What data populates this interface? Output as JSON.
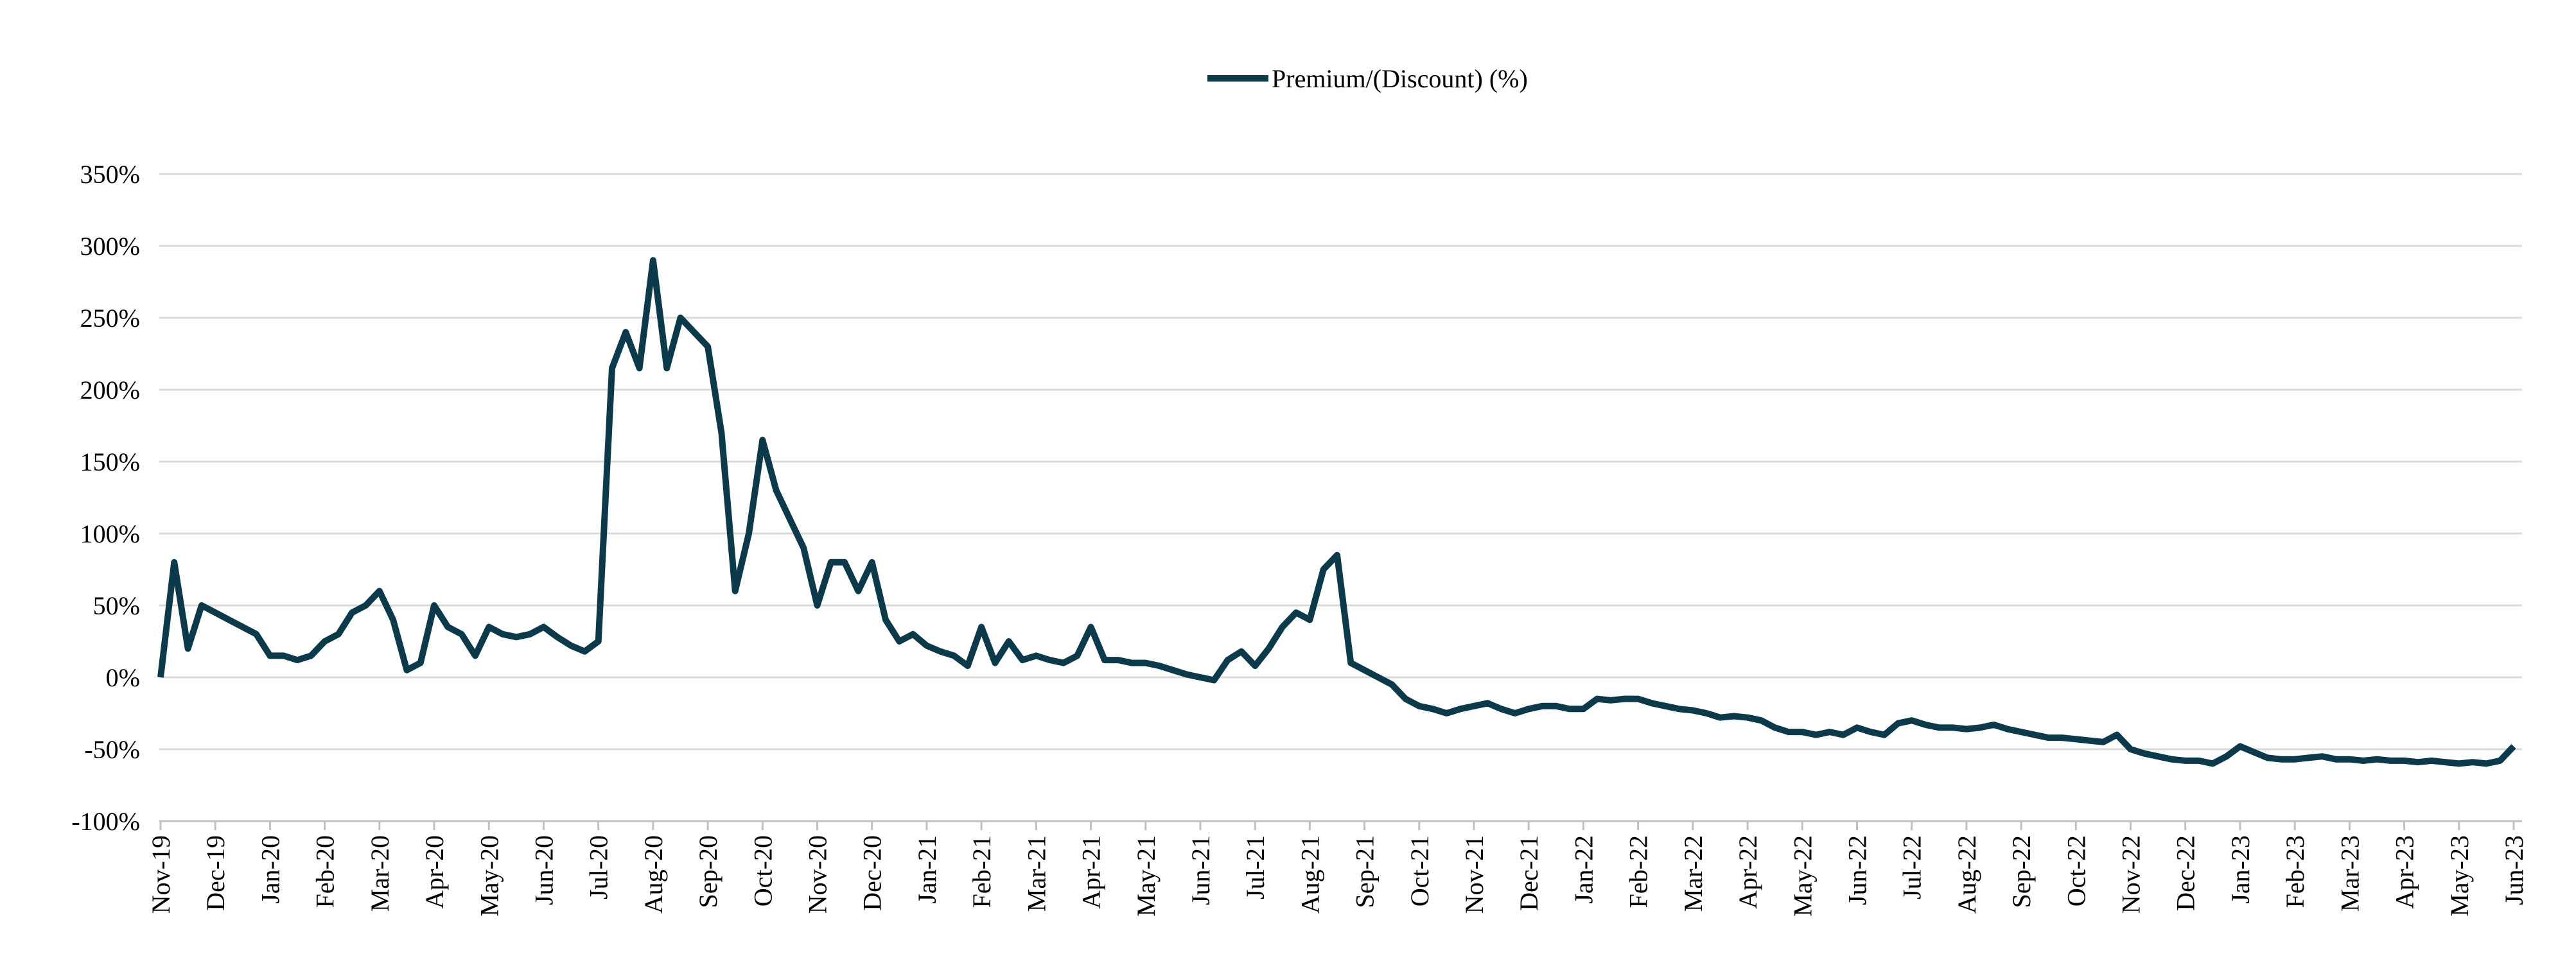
{
  "chart_data": {
    "type": "line",
    "categories": [
      "Nov-19",
      null,
      null,
      null,
      "Dec-19",
      null,
      null,
      null,
      "Jan-20",
      null,
      null,
      null,
      "Feb-20",
      null,
      null,
      null,
      "Mar-20",
      null,
      null,
      null,
      "Apr-20",
      null,
      null,
      null,
      "May-20",
      null,
      null,
      null,
      "Jun-20",
      null,
      null,
      null,
      "Jul-20",
      null,
      null,
      null,
      "Aug-20",
      null,
      null,
      null,
      "Sep-20",
      null,
      null,
      null,
      "Oct-20",
      null,
      null,
      null,
      "Nov-20",
      null,
      null,
      null,
      "Dec-20",
      null,
      null,
      null,
      "Jan-21",
      null,
      null,
      null,
      "Feb-21",
      null,
      null,
      null,
      "Mar-21",
      null,
      null,
      null,
      "Apr-21",
      null,
      null,
      null,
      "May-21",
      null,
      null,
      null,
      "Jun-21",
      null,
      null,
      null,
      "Jul-21",
      null,
      null,
      null,
      "Aug-21",
      null,
      null,
      null,
      "Sep-21",
      null,
      null,
      null,
      "Oct-21",
      null,
      null,
      null,
      "Nov-21",
      null,
      null,
      null,
      "Dec-21",
      null,
      null,
      null,
      "Jan-22",
      null,
      null,
      null,
      "Feb-22",
      null,
      null,
      null,
      "Mar-22",
      null,
      null,
      null,
      "Apr-22",
      null,
      null,
      null,
      "May-22",
      null,
      null,
      null,
      "Jun-22",
      null,
      null,
      null,
      "Jul-22",
      null,
      null,
      null,
      "Aug-22",
      null,
      null,
      null,
      "Sep-22",
      null,
      null,
      null,
      "Oct-22",
      null,
      null,
      null,
      "Nov-22",
      null,
      null,
      null,
      "Dec-22",
      null,
      null,
      null,
      "Jan-23",
      null,
      null,
      null,
      "Feb-23",
      null,
      null,
      null,
      "Mar-23",
      null,
      null,
      null,
      "Apr-23",
      null,
      null,
      null,
      "May-23",
      null,
      null,
      null,
      "Jun-23"
    ],
    "series": [
      {
        "name": "Premium/(Discount) (%)",
        "color": "#0d3a4b",
        "values": [
          0,
          80,
          20,
          50,
          45,
          40,
          35,
          30,
          15,
          15,
          12,
          15,
          25,
          30,
          45,
          50,
          60,
          40,
          5,
          10,
          50,
          35,
          30,
          15,
          35,
          30,
          28,
          30,
          35,
          28,
          22,
          18,
          25,
          215,
          240,
          215,
          290,
          215,
          250,
          240,
          230,
          170,
          60,
          100,
          165,
          130,
          110,
          90,
          50,
          80,
          80,
          60,
          80,
          40,
          25,
          30,
          22,
          18,
          15,
          8,
          35,
          10,
          25,
          12,
          15,
          12,
          10,
          15,
          35,
          12,
          12,
          10,
          10,
          8,
          5,
          2,
          0,
          -2,
          12,
          18,
          8,
          20,
          35,
          45,
          40,
          75,
          85,
          10,
          5,
          0,
          -5,
          -15,
          -20,
          -22,
          -25,
          -22,
          -20,
          -18,
          -22,
          -25,
          -22,
          -20,
          -20,
          -22,
          -22,
          -15,
          -16,
          -15,
          -15,
          -18,
          -20,
          -22,
          -23,
          -25,
          -28,
          -27,
          -28,
          -30,
          -35,
          -38,
          -38,
          -40,
          -38,
          -40,
          -35,
          -38,
          -40,
          -32,
          -30,
          -33,
          -35,
          -35,
          -36,
          -35,
          -33,
          -36,
          -38,
          -40,
          -42,
          -42,
          -43,
          -44,
          -45,
          -40,
          -50,
          -53,
          -55,
          -57,
          -58,
          -58,
          -60,
          -55,
          -48,
          -52,
          -56,
          -57,
          -57,
          -56,
          -55,
          -57,
          -57,
          -58,
          -57,
          -58,
          -58,
          -59,
          -58,
          -59,
          -60,
          -59,
          -60,
          -58,
          -48
        ]
      }
    ],
    "ylim": [
      -100,
      350
    ],
    "yticks": [
      {
        "value": -100,
        "label": "-100%"
      },
      {
        "value": -50,
        "label": "-50%"
      },
      {
        "value": 0,
        "label": "0%"
      },
      {
        "value": 50,
        "label": "50%"
      },
      {
        "value": 100,
        "label": "100%"
      },
      {
        "value": 150,
        "label": "150%"
      },
      {
        "value": 200,
        "label": "200%"
      },
      {
        "value": 250,
        "label": "250%"
      },
      {
        "value": 300,
        "label": "300%"
      },
      {
        "value": 350,
        "label": "350%"
      }
    ],
    "grid": true,
    "legend": "top"
  }
}
